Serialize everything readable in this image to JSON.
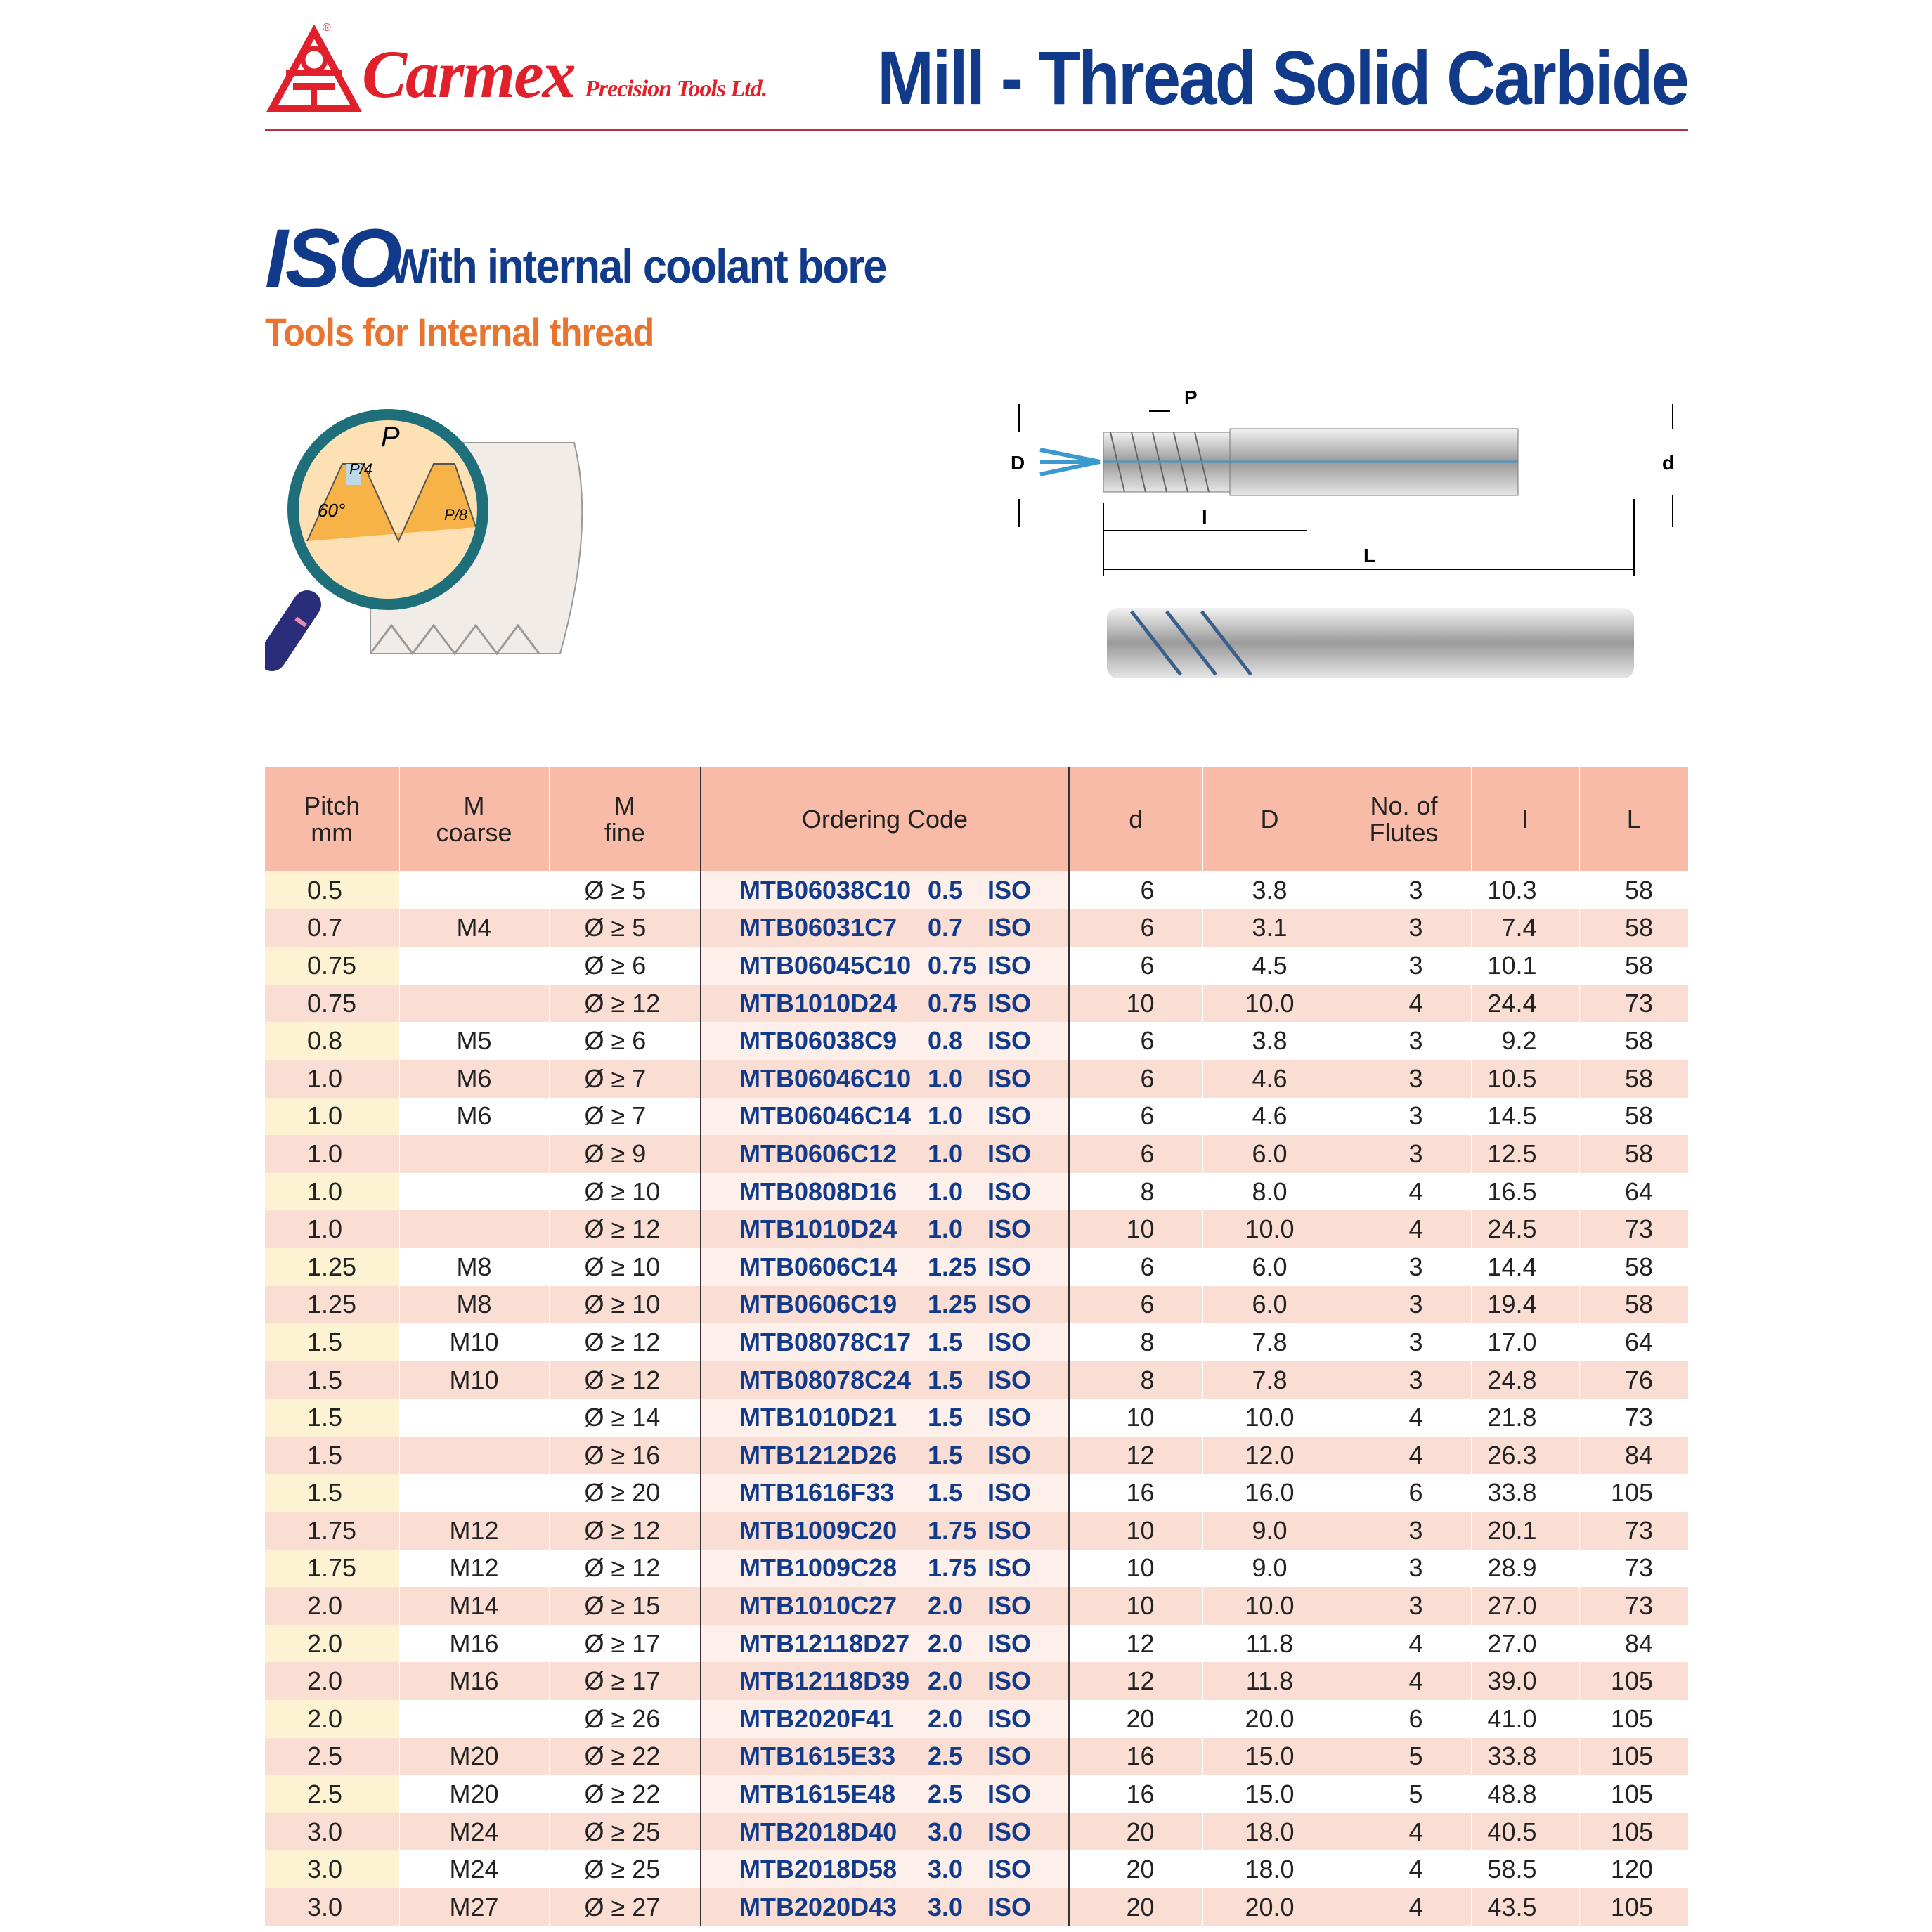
{
  "header": {
    "brand": "Carmex",
    "brand_sub": "Precision Tools Ltd.",
    "title": "Mill - Thread Solid Carbide",
    "colors": {
      "brand_red": "#e0202a",
      "title_blue": "#123a8a",
      "rule": "#b0323a"
    }
  },
  "section": {
    "iso": "ISO",
    "subtitle": "With internal coolant bore",
    "subtitle2": "Tools for Internal thread",
    "subtitle2_color": "#e8742f"
  },
  "thread_illustration": {
    "labels": {
      "P": "P",
      "P4": "P/4",
      "P8": "P/8",
      "angle": "60°"
    }
  },
  "tool_diagram": {
    "labels": {
      "P": "P",
      "D": "D",
      "d": "d",
      "l": "l",
      "L": "L"
    }
  },
  "table": {
    "headers": [
      "Pitch\nmm",
      "M\ncoarse",
      "M\nfine",
      "Ordering Code",
      "d",
      "D",
      "No. of\nFlutes",
      "l",
      "L"
    ],
    "header_color": "#f7bba8",
    "rows": [
      [
        "0.5",
        "",
        "Ø ≥  5",
        "MTB06038C10",
        "0.5",
        "ISO",
        "6",
        "3.8",
        "3",
        "10.3",
        "58"
      ],
      [
        "0.7",
        "M4",
        "Ø ≥  5",
        "MTB06031C7",
        "0.7",
        "ISO",
        "6",
        "3.1",
        "3",
        "7.4",
        "58"
      ],
      [
        "0.75",
        "",
        "Ø ≥  6",
        "MTB06045C10",
        "0.75",
        "ISO",
        "6",
        "4.5",
        "3",
        "10.1",
        "58"
      ],
      [
        "0.75",
        "",
        "Ø ≥ 12",
        "MTB1010D24",
        "0.75",
        "ISO",
        "10",
        "10.0",
        "4",
        "24.4",
        "73"
      ],
      [
        "0.8",
        "M5",
        "Ø ≥  6",
        "MTB06038C9",
        "0.8",
        "ISO",
        "6",
        "3.8",
        "3",
        "9.2",
        "58"
      ],
      [
        "1.0",
        "M6",
        "Ø ≥  7",
        "MTB06046C10",
        "1.0",
        "ISO",
        "6",
        "4.6",
        "3",
        "10.5",
        "58"
      ],
      [
        "1.0",
        "M6",
        "Ø ≥  7",
        "MTB06046C14",
        "1.0",
        "ISO",
        "6",
        "4.6",
        "3",
        "14.5",
        "58"
      ],
      [
        "1.0",
        "",
        "Ø ≥  9",
        "MTB0606C12",
        "1.0",
        "ISO",
        "6",
        "6.0",
        "3",
        "12.5",
        "58"
      ],
      [
        "1.0",
        "",
        "Ø ≥ 10",
        "MTB0808D16",
        "1.0",
        "ISO",
        "8",
        "8.0",
        "4",
        "16.5",
        "64"
      ],
      [
        "1.0",
        "",
        "Ø ≥ 12",
        "MTB1010D24",
        "1.0",
        "ISO",
        "10",
        "10.0",
        "4",
        "24.5",
        "73"
      ],
      [
        "1.25",
        "M8",
        "Ø ≥ 10",
        "MTB0606C14",
        "1.25",
        "ISO",
        "6",
        "6.0",
        "3",
        "14.4",
        "58"
      ],
      [
        "1.25",
        "M8",
        "Ø ≥ 10",
        "MTB0606C19",
        "1.25",
        "ISO",
        "6",
        "6.0",
        "3",
        "19.4",
        "58"
      ],
      [
        "1.5",
        "M10",
        "Ø ≥ 12",
        "MTB08078C17",
        "1.5",
        "ISO",
        "8",
        "7.8",
        "3",
        "17.0",
        "64"
      ],
      [
        "1.5",
        "M10",
        "Ø ≥ 12",
        "MTB08078C24",
        "1.5",
        "ISO",
        "8",
        "7.8",
        "3",
        "24.8",
        "76"
      ],
      [
        "1.5",
        "",
        "Ø ≥ 14",
        "MTB1010D21",
        "1.5",
        "ISO",
        "10",
        "10.0",
        "4",
        "21.8",
        "73"
      ],
      [
        "1.5",
        "",
        "Ø ≥ 16",
        "MTB1212D26",
        "1.5",
        "ISO",
        "12",
        "12.0",
        "4",
        "26.3",
        "84"
      ],
      [
        "1.5",
        "",
        "Ø ≥ 20",
        "MTB1616F33",
        "1.5",
        "ISO",
        "16",
        "16.0",
        "6",
        "33.8",
        "105"
      ],
      [
        "1.75",
        "M12",
        "Ø ≥ 12",
        "MTB1009C20",
        "1.75",
        "ISO",
        "10",
        "9.0",
        "3",
        "20.1",
        "73"
      ],
      [
        "1.75",
        "M12",
        "Ø ≥ 12",
        "MTB1009C28",
        "1.75",
        "ISO",
        "10",
        "9.0",
        "3",
        "28.9",
        "73"
      ],
      [
        "2.0",
        "M14",
        "Ø ≥ 15",
        "MTB1010C27",
        "2.0",
        "ISO",
        "10",
        "10.0",
        "3",
        "27.0",
        "73"
      ],
      [
        "2.0",
        "M16",
        "Ø ≥ 17",
        "MTB12118D27",
        "2.0",
        "ISO",
        "12",
        "11.8",
        "4",
        "27.0",
        "84"
      ],
      [
        "2.0",
        "M16",
        "Ø ≥ 17",
        "MTB12118D39",
        "2.0",
        "ISO",
        "12",
        "11.8",
        "4",
        "39.0",
        "105"
      ],
      [
        "2.0",
        "",
        "Ø ≥ 26",
        "MTB2020F41",
        "2.0",
        "ISO",
        "20",
        "20.0",
        "6",
        "41.0",
        "105"
      ],
      [
        "2.5",
        "M20",
        "Ø ≥ 22",
        "MTB1615E33",
        "2.5",
        "ISO",
        "16",
        "15.0",
        "5",
        "33.8",
        "105"
      ],
      [
        "2.5",
        "M20",
        "Ø ≥ 22",
        "MTB1615E48",
        "2.5",
        "ISO",
        "16",
        "15.0",
        "5",
        "48.8",
        "105"
      ],
      [
        "3.0",
        "M24",
        "Ø ≥ 25",
        "MTB2018D40",
        "3.0",
        "ISO",
        "20",
        "18.0",
        "4",
        "40.5",
        "105"
      ],
      [
        "3.0",
        "M24",
        "Ø ≥ 25",
        "MTB2018D58",
        "3.0",
        "ISO",
        "20",
        "18.0",
        "4",
        "58.5",
        "120"
      ],
      [
        "3.0",
        "M27",
        "Ø ≥ 27",
        "MTB2020D43",
        "3.0",
        "ISO",
        "20",
        "20.0",
        "4",
        "43.5",
        "105"
      ]
    ]
  }
}
